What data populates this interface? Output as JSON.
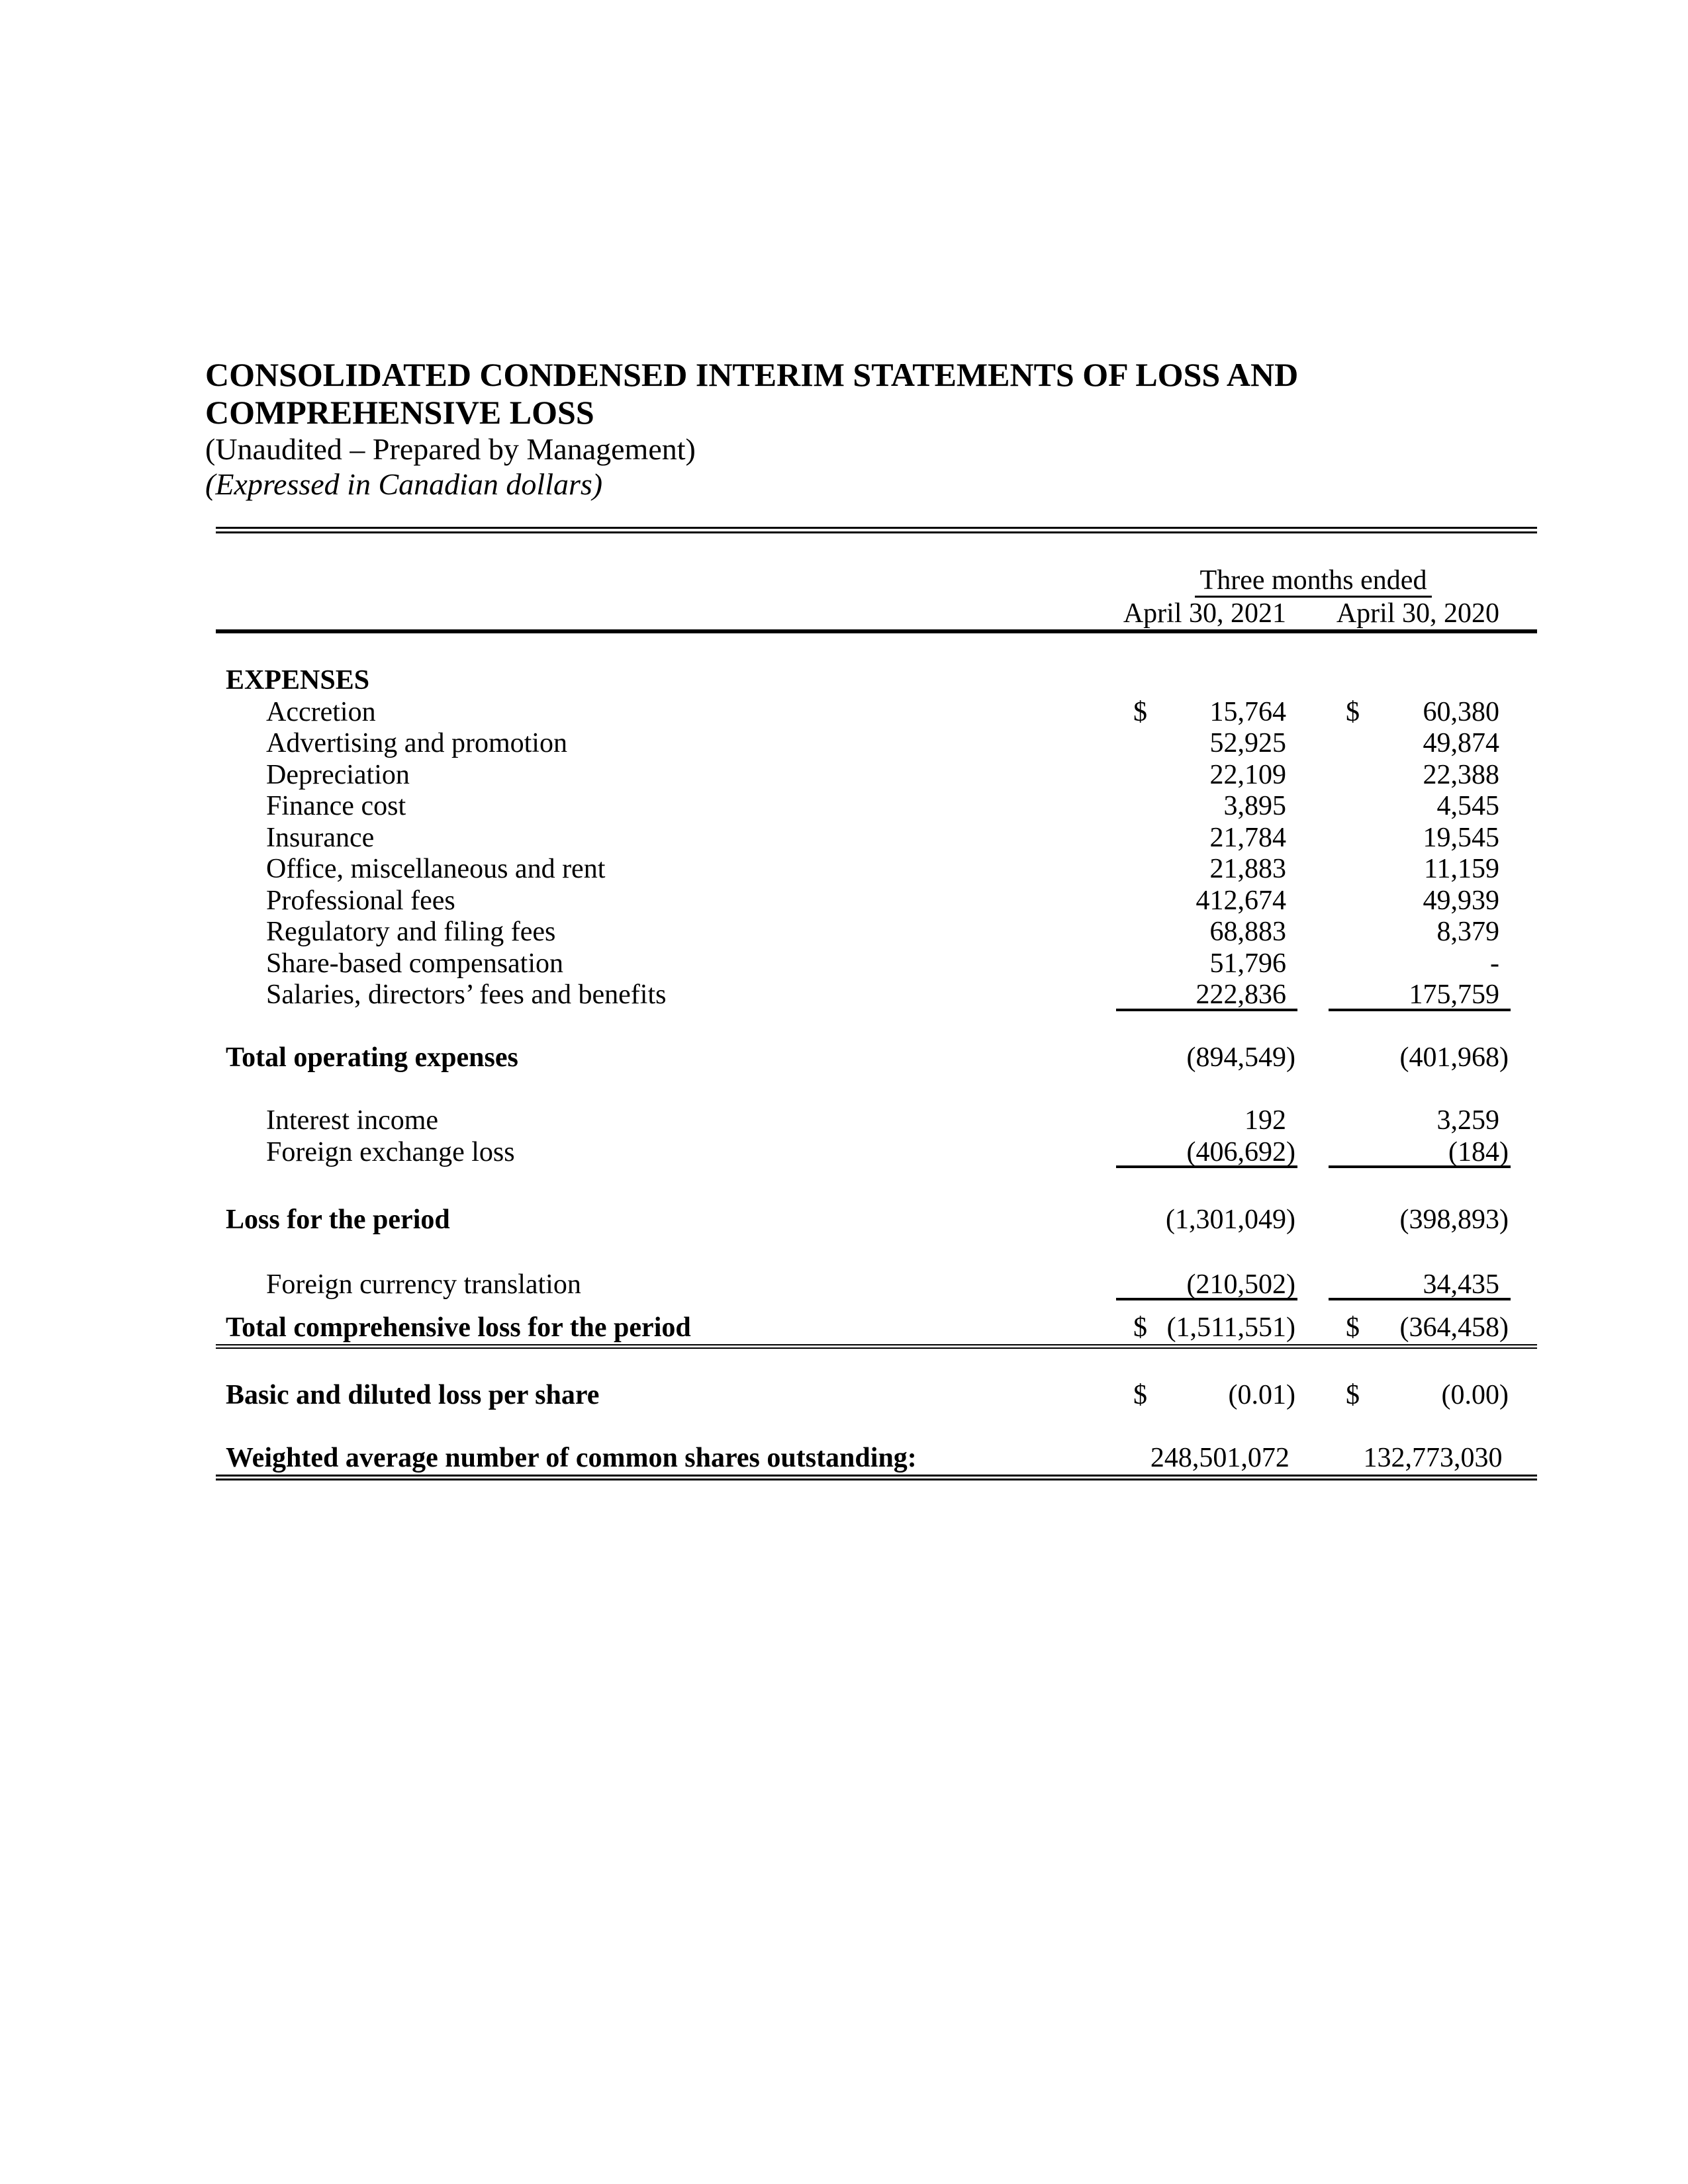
{
  "header": {
    "title_line1": "CONSOLIDATED CONDENSED INTERIM STATEMENTS OF LOSS AND",
    "title_line2": "COMPREHENSIVE LOSS",
    "subtitle_unaudited": "(Unaudited – Prepared by Management)",
    "subtitle_currency": "(Expressed in Canadian dollars)"
  },
  "table": {
    "period_header": "Three months ended",
    "column_headers": [
      "April 30, 2021",
      "April 30, 2020"
    ],
    "rows": [
      {
        "label": "EXPENSES",
        "bold": true
      },
      {
        "label": "Accretion",
        "indent": true,
        "values": [
          {
            "currency": "$",
            "amount": "15,764"
          },
          {
            "currency": "$",
            "amount": "60,380"
          }
        ]
      },
      {
        "label": "Advertising and promotion",
        "indent": true,
        "values": [
          {
            "amount": "52,925"
          },
          {
            "amount": "49,874"
          }
        ]
      },
      {
        "label": "Depreciation",
        "indent": true,
        "values": [
          {
            "amount": "22,109"
          },
          {
            "amount": "22,388"
          }
        ]
      },
      {
        "label": "Finance cost",
        "indent": true,
        "values": [
          {
            "amount": "3,895"
          },
          {
            "amount": "4,545"
          }
        ]
      },
      {
        "label": "Insurance",
        "indent": true,
        "values": [
          {
            "amount": "21,784"
          },
          {
            "amount": "19,545"
          }
        ]
      },
      {
        "label": "Office, miscellaneous and rent",
        "indent": true,
        "values": [
          {
            "amount": "21,883"
          },
          {
            "amount": "11,159"
          }
        ]
      },
      {
        "label": "Professional fees",
        "indent": true,
        "values": [
          {
            "amount": "412,674"
          },
          {
            "amount": "49,939"
          }
        ]
      },
      {
        "label": "Regulatory and filing fees",
        "indent": true,
        "values": [
          {
            "amount": "68,883"
          },
          {
            "amount": "8,379"
          }
        ]
      },
      {
        "label": "Share-based compensation",
        "indent": true,
        "values": [
          {
            "amount": "51,796"
          },
          {
            "amount": "-"
          }
        ]
      },
      {
        "label": "Salaries, directors’ fees and benefits",
        "indent": true,
        "underline": true,
        "values": [
          {
            "amount": "222,836"
          },
          {
            "amount": "175,759"
          }
        ]
      },
      {
        "label": "Total operating expenses",
        "bold": true,
        "gap": "blank",
        "values": [
          {
            "amount": "(894,549)"
          },
          {
            "amount": "(401,968)"
          }
        ]
      },
      {
        "label": "Interest income",
        "indent": true,
        "gap": "blank",
        "values": [
          {
            "amount": "192"
          },
          {
            "amount": "3,259"
          }
        ]
      },
      {
        "label": "Foreign exchange loss",
        "indent": true,
        "underline": true,
        "values": [
          {
            "amount": "(406,692)"
          },
          {
            "amount": "(184)"
          }
        ]
      },
      {
        "label": "Loss for the period",
        "bold": true,
        "gap": "wide",
        "values": [
          {
            "amount": "(1,301,049)"
          },
          {
            "amount": "(398,893)"
          }
        ]
      },
      {
        "label": "Foreign currency translation",
        "indent": true,
        "gap": "medium",
        "underline": true,
        "values": [
          {
            "amount": "(210,502)"
          },
          {
            "amount": "34,435"
          }
        ]
      },
      {
        "label": "Total comprehensive loss for the period",
        "bold": true,
        "gap": "tight",
        "rule_after": "thin",
        "values": [
          {
            "currency": "$",
            "amount": "(1,511,551)"
          },
          {
            "currency": "$",
            "amount": "(364,458)"
          }
        ]
      },
      {
        "label": "Basic and diluted loss per share",
        "bold": true,
        "gap": "blank",
        "values": [
          {
            "currency": "$",
            "amount": "(0.01)"
          },
          {
            "currency": "$",
            "amount": "(0.00)"
          }
        ]
      },
      {
        "label": "Weighted average number of common shares outstanding:",
        "bold": true,
        "gap": "blank",
        "rule_after": "thick",
        "values": [
          {
            "amount": "248,501,072"
          },
          {
            "amount": "132,773,030"
          }
        ]
      }
    ]
  }
}
